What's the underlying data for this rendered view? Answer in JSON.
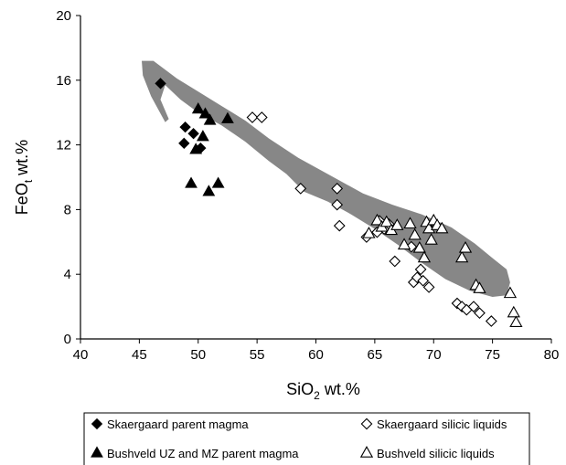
{
  "chart_data": {
    "type": "scatter",
    "xlabel": {
      "base": "SiO",
      "sub": "2",
      "rest": " wt.%"
    },
    "ylabel": {
      "base": "FeO",
      "sub": "t",
      "rest": " wt.%"
    },
    "xlim": [
      40,
      80
    ],
    "ylim": [
      0,
      20
    ],
    "xticks": [
      40,
      45,
      50,
      55,
      60,
      65,
      70,
      75,
      80
    ],
    "yticks": [
      0,
      4,
      8,
      12,
      16,
      20
    ],
    "grid": false,
    "legend_position": "bottom",
    "band": {
      "color": "#878787",
      "outline": [
        [
          45.2,
          17.2
        ],
        [
          46.2,
          17.2
        ],
        [
          48.2,
          16.1
        ],
        [
          50.0,
          15.3
        ],
        [
          52.0,
          14.4
        ],
        [
          54.0,
          13.5
        ],
        [
          56.0,
          12.4
        ],
        [
          58.5,
          11.2
        ],
        [
          61.5,
          10.0
        ],
        [
          64.0,
          9.0
        ],
        [
          66.5,
          8.3
        ],
        [
          69.0,
          7.7
        ],
        [
          71.5,
          6.9
        ],
        [
          73.5,
          5.9
        ],
        [
          75.0,
          5.0
        ],
        [
          76.2,
          4.3
        ],
        [
          76.5,
          3.5
        ],
        [
          76.2,
          2.7
        ],
        [
          75.0,
          2.6
        ],
        [
          73.0,
          3.0
        ],
        [
          71.0,
          3.7
        ],
        [
          69.0,
          4.7
        ],
        [
          67.0,
          5.8
        ],
        [
          65.0,
          6.8
        ],
        [
          63.0,
          7.7
        ],
        [
          61.0,
          8.5
        ],
        [
          59.0,
          9.1
        ],
        [
          57.5,
          10.2
        ],
        [
          56.0,
          11.0
        ],
        [
          54.0,
          12.2
        ],
        [
          52.0,
          13.2
        ],
        [
          50.0,
          14.0
        ],
        [
          48.5,
          14.8
        ],
        [
          47.2,
          15.7
        ],
        [
          46.8,
          14.8
        ],
        [
          47.5,
          13.6
        ],
        [
          47.2,
          13.4
        ],
        [
          46.0,
          15.0
        ],
        [
          45.3,
          16.3
        ]
      ]
    },
    "series": [
      {
        "name": "Skaergaard parent magma",
        "marker": "filled-diamond",
        "points": [
          [
            46.8,
            15.8
          ],
          [
            48.9,
            13.1
          ],
          [
            48.8,
            12.1
          ],
          [
            49.6,
            12.7
          ],
          [
            50.2,
            11.8
          ]
        ]
      },
      {
        "name": "Bushveld UZ and MZ parent magma",
        "marker": "filled-triangle",
        "points": [
          [
            50.0,
            14.2
          ],
          [
            50.6,
            13.9
          ],
          [
            51.0,
            13.5
          ],
          [
            52.5,
            13.6
          ],
          [
            50.4,
            12.5
          ],
          [
            49.8,
            11.7
          ],
          [
            49.4,
            9.6
          ],
          [
            50.9,
            9.1
          ],
          [
            51.7,
            9.6
          ]
        ]
      },
      {
        "name": "Skaergaard silicic liquids",
        "marker": "open-diamond",
        "points": [
          [
            54.6,
            13.7
          ],
          [
            55.4,
            13.7
          ],
          [
            58.7,
            9.3
          ],
          [
            61.8,
            9.3
          ],
          [
            61.8,
            8.3
          ],
          [
            62.0,
            7.0
          ],
          [
            64.3,
            6.3
          ],
          [
            65.2,
            6.6
          ],
          [
            65.4,
            7.3
          ],
          [
            65.8,
            6.8
          ],
          [
            66.2,
            7.1
          ],
          [
            66.7,
            4.8
          ],
          [
            68.1,
            5.7
          ],
          [
            68.3,
            3.5
          ],
          [
            68.6,
            3.8
          ],
          [
            68.9,
            4.3
          ],
          [
            69.1,
            3.6
          ],
          [
            69.6,
            3.2
          ],
          [
            72.0,
            2.2
          ],
          [
            72.4,
            2.0
          ],
          [
            72.8,
            1.8
          ],
          [
            73.4,
            2.0
          ],
          [
            73.9,
            1.6
          ],
          [
            74.9,
            1.1
          ]
        ]
      },
      {
        "name": "Bushveld silicic liquids",
        "marker": "open-triangle",
        "points": [
          [
            64.5,
            6.5
          ],
          [
            65.2,
            7.3
          ],
          [
            65.6,
            6.9
          ],
          [
            66.0,
            7.2
          ],
          [
            66.4,
            6.7
          ],
          [
            66.9,
            7.0
          ],
          [
            67.5,
            5.8
          ],
          [
            68.0,
            7.1
          ],
          [
            68.4,
            6.4
          ],
          [
            68.8,
            5.6
          ],
          [
            69.2,
            5.0
          ],
          [
            69.4,
            7.2
          ],
          [
            69.6,
            6.8
          ],
          [
            69.8,
            6.1
          ],
          [
            70.0,
            7.3
          ],
          [
            70.3,
            7.0
          ],
          [
            70.7,
            6.8
          ],
          [
            72.4,
            5.0
          ],
          [
            72.7,
            5.6
          ],
          [
            73.6,
            3.3
          ],
          [
            73.9,
            3.1
          ],
          [
            76.5,
            2.8
          ],
          [
            76.8,
            1.6
          ],
          [
            77.0,
            1.0
          ]
        ]
      }
    ]
  }
}
